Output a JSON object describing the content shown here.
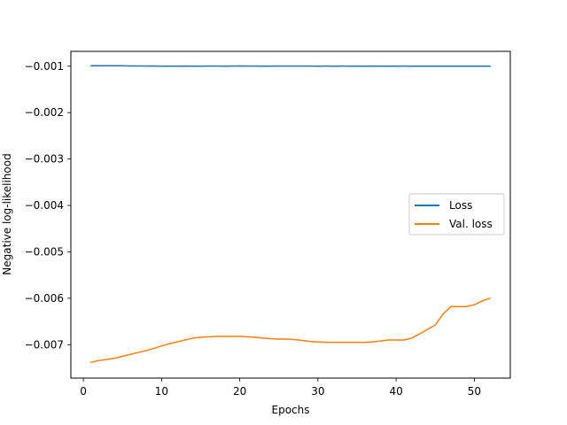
{
  "chart_data": {
    "type": "line",
    "xlabel": "Epochs",
    "ylabel": "Negative log-likelihood",
    "xlim": [
      -1.6,
      54.6
    ],
    "ylim": [
      -0.00772,
      -0.00068
    ],
    "xticks": [
      0,
      10,
      20,
      30,
      40,
      50
    ],
    "yticks": [
      -0.001,
      -0.002,
      -0.003,
      -0.004,
      -0.005,
      -0.006,
      -0.007
    ],
    "ytick_labels": [
      "−0.001",
      "−0.002",
      "−0.003",
      "−0.004",
      "−0.005",
      "−0.006",
      "−0.007"
    ],
    "grid": false,
    "legend_position": "center-right",
    "x": [
      1,
      2,
      3,
      4,
      5,
      6,
      7,
      8,
      9,
      10,
      11,
      12,
      13,
      14,
      15,
      16,
      17,
      18,
      19,
      20,
      21,
      22,
      23,
      24,
      25,
      26,
      27,
      28,
      29,
      30,
      31,
      32,
      33,
      34,
      35,
      36,
      37,
      38,
      39,
      40,
      41,
      42,
      43,
      44,
      45,
      46,
      47,
      48,
      49,
      50,
      51,
      52
    ],
    "series": [
      {
        "name": "Loss",
        "color": "#1f77b4",
        "values": [
          -0.00099,
          -0.00099,
          -0.00099,
          -0.00099,
          -0.00099,
          -0.000995,
          -0.000995,
          -0.000998,
          -0.000995,
          -0.001,
          -0.001,
          -0.001,
          -0.000998,
          -0.001,
          -0.001,
          -0.000998,
          -0.000998,
          -0.001,
          -0.000998,
          -0.000996,
          -0.000998,
          -0.000998,
          -0.001,
          -0.000999,
          -0.000998,
          -0.000998,
          -0.000997,
          -0.000997,
          -0.000998,
          -0.000999,
          -0.000998,
          -0.000999,
          -0.000998,
          -0.001,
          -0.000998,
          -0.001,
          -0.000998,
          -0.001,
          -0.001,
          -0.000999,
          -0.000998,
          -0.001,
          -0.001,
          -0.001,
          -0.001,
          -0.001,
          -0.001,
          -0.001,
          -0.001,
          -0.001,
          -0.001,
          -0.001
        ]
      },
      {
        "name": "Val. loss",
        "color": "#ff7f0e",
        "values": [
          -0.00738,
          -0.00734,
          -0.00732,
          -0.00729,
          -0.00725,
          -0.00721,
          -0.00717,
          -0.00713,
          -0.00708,
          -0.00703,
          -0.00698,
          -0.00694,
          -0.0069,
          -0.00686,
          -0.00684,
          -0.00683,
          -0.00682,
          -0.00682,
          -0.00682,
          -0.00682,
          -0.00683,
          -0.00684,
          -0.00686,
          -0.00687,
          -0.00688,
          -0.00688,
          -0.00689,
          -0.00691,
          -0.00693,
          -0.00694,
          -0.00695,
          -0.00695,
          -0.00695,
          -0.00695,
          -0.00695,
          -0.00695,
          -0.00694,
          -0.00692,
          -0.0069,
          -0.0069,
          -0.0069,
          -0.00686,
          -0.00677,
          -0.00667,
          -0.00658,
          -0.00634,
          -0.00618,
          -0.00618,
          -0.00618,
          -0.00614,
          -0.00606,
          -0.006
        ]
      }
    ]
  }
}
